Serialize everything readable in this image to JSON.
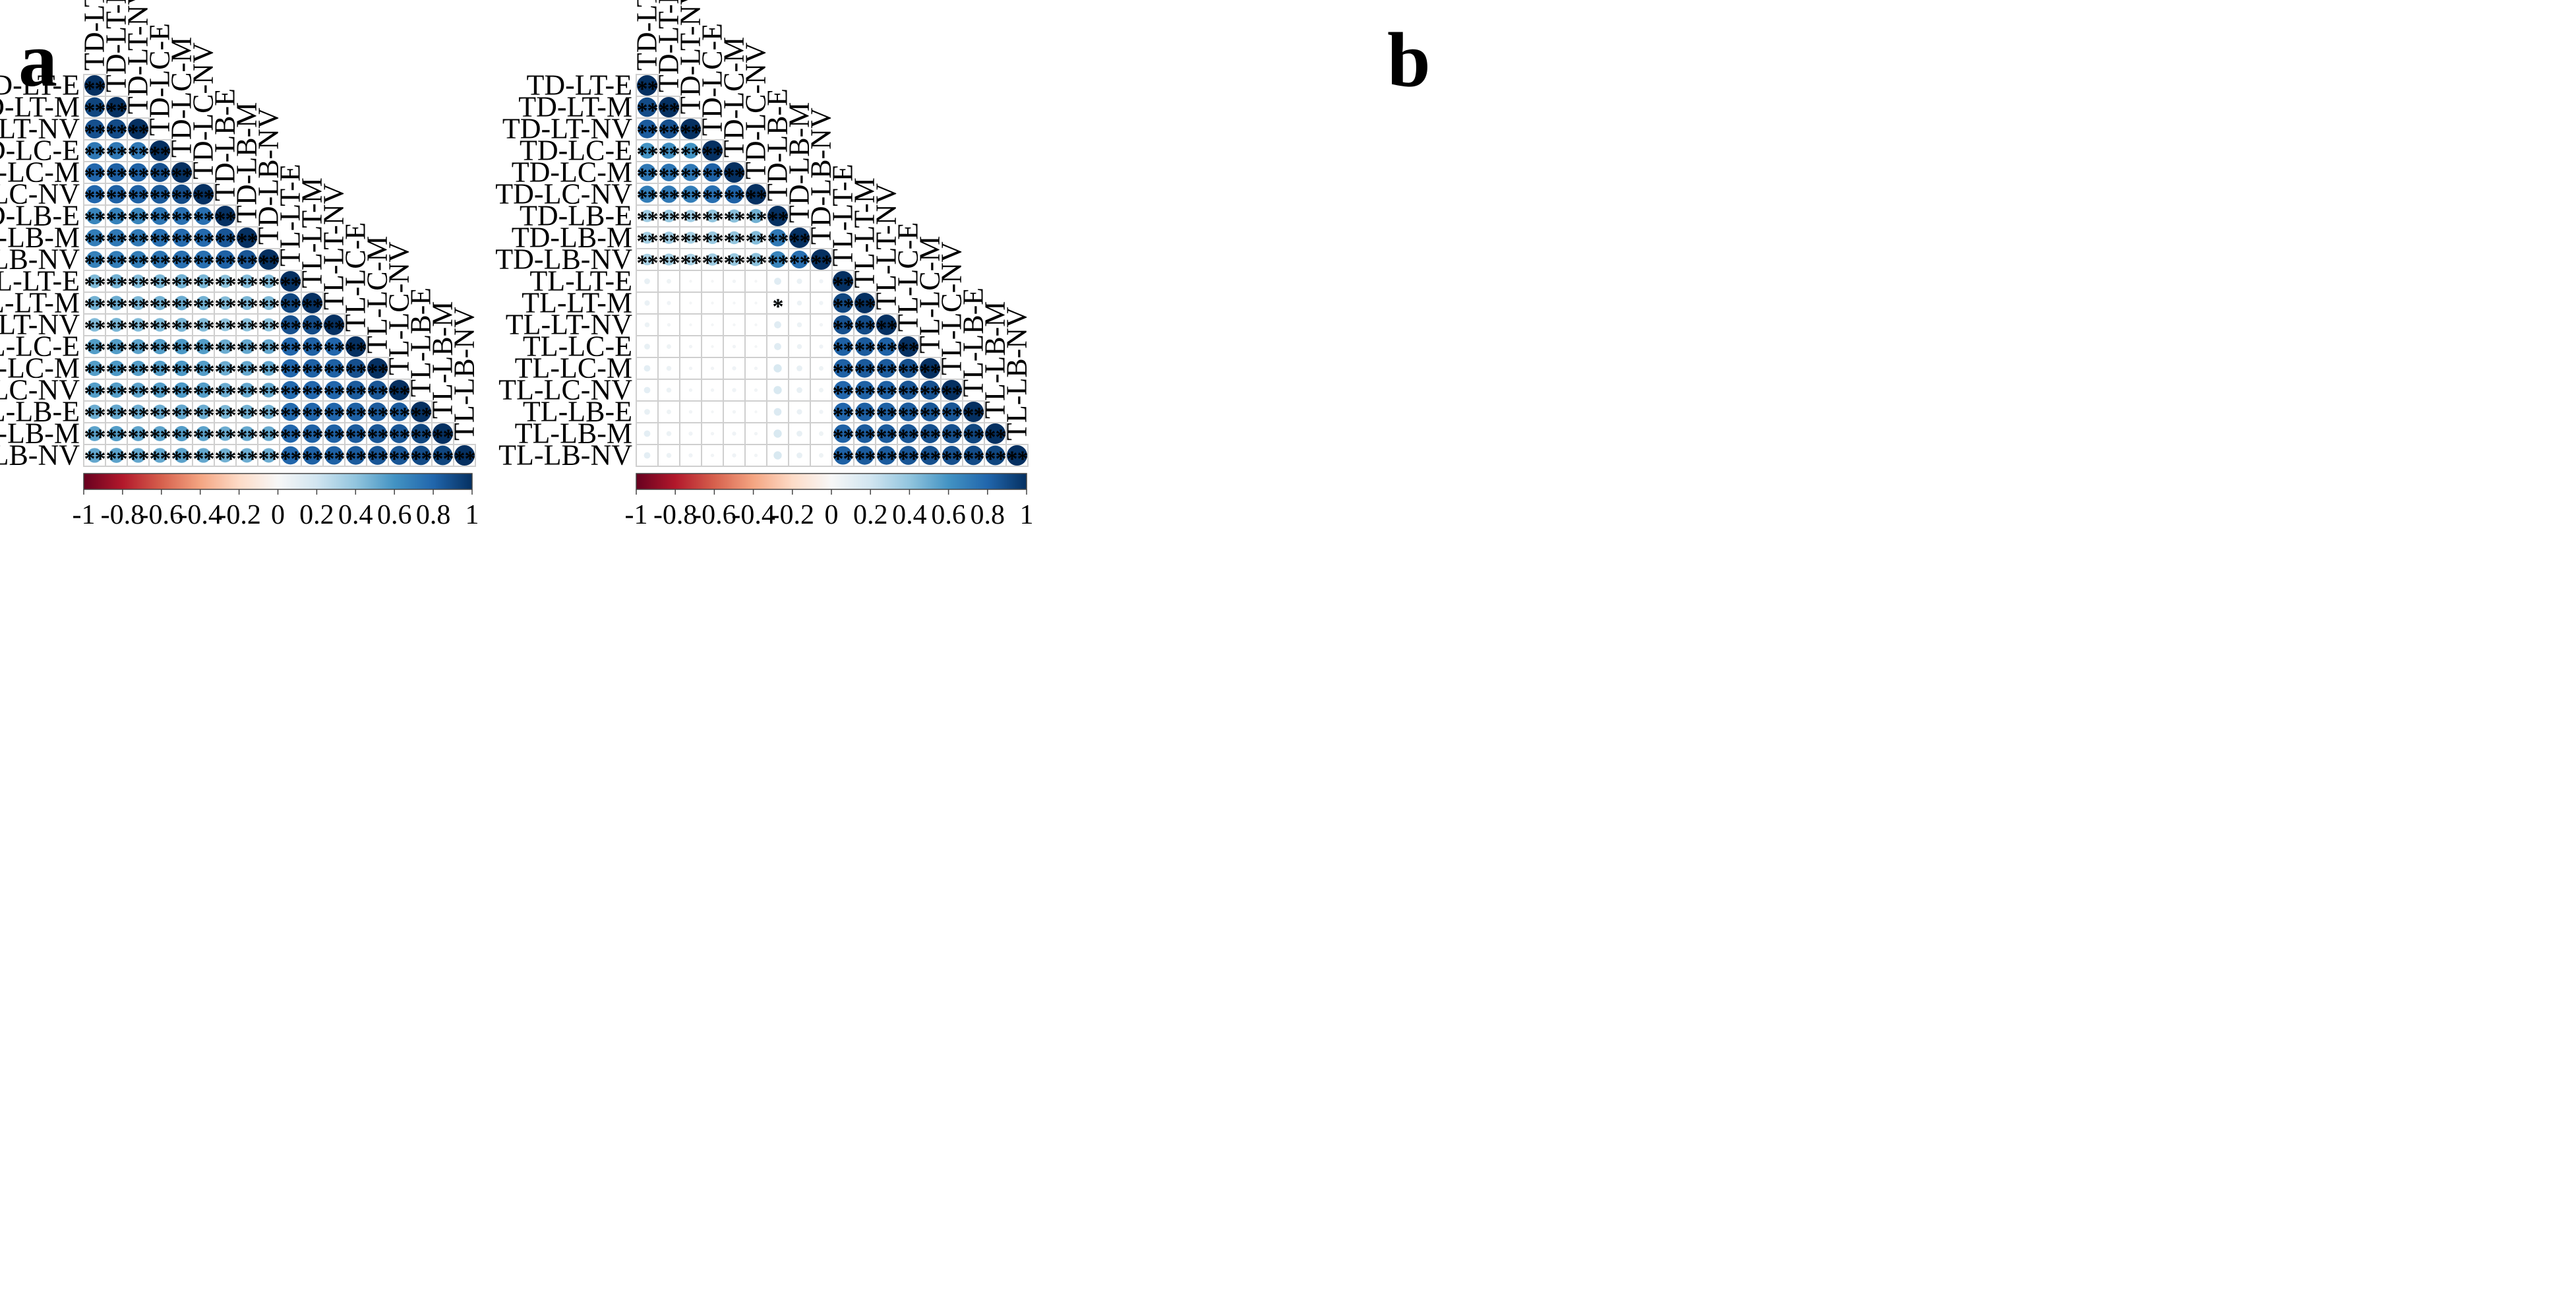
{
  "labels": [
    "TD-LT-E",
    "TD-LT-M",
    "TD-LT-NV",
    "TD-LC-E",
    "TD-LC-M",
    "TD-LC-NV",
    "TD-LB-E",
    "TD-LB-M",
    "TD-LB-NV",
    "TL-LT-E",
    "TL-LT-M",
    "TL-LT-NV",
    "TL-LC-E",
    "TL-LC-M",
    "TL-LC-NV",
    "TL-LB-E",
    "TL-LB-M",
    "TL-LB-NV"
  ],
  "colorbar": {
    "ticks": [
      "-1",
      "-0.8",
      "-0.6",
      "-0.4",
      "-0.2",
      "0",
      "0.2",
      "0.4",
      "0.6",
      "0.8",
      "1"
    ],
    "colors": [
      "#67001f",
      "#b2182b",
      "#d6604d",
      "#f4a582",
      "#fddbc7",
      "#f7f7f7",
      "#d1e5f0",
      "#92c5de",
      "#4393c3",
      "#2166ac",
      "#053061"
    ]
  },
  "chart_data": [
    {
      "panel": "a",
      "type": "heatmap",
      "title": "",
      "value_range": [
        -1,
        1
      ],
      "variables": [
        "TD-LT-E",
        "TD-LT-M",
        "TD-LT-NV",
        "TD-LC-E",
        "TD-LC-M",
        "TD-LC-NV",
        "TD-LB-E",
        "TD-LB-M",
        "TD-LB-NV",
        "TL-LT-E",
        "TL-LT-M",
        "TL-LT-NV",
        "TL-LC-E",
        "TL-LC-M",
        "TL-LC-NV",
        "TL-LB-E",
        "TL-LB-M",
        "TL-LB-NV"
      ],
      "matrix": [
        [
          1
        ],
        [
          0.92,
          1
        ],
        [
          0.88,
          0.9,
          1
        ],
        [
          0.72,
          0.72,
          0.72,
          1
        ],
        [
          0.8,
          0.82,
          0.82,
          0.88,
          1
        ],
        [
          0.8,
          0.82,
          0.82,
          0.85,
          0.9,
          1
        ],
        [
          0.66,
          0.68,
          0.66,
          0.74,
          0.76,
          0.76,
          1
        ],
        [
          0.7,
          0.72,
          0.72,
          0.76,
          0.78,
          0.78,
          0.86,
          1
        ],
        [
          0.68,
          0.7,
          0.7,
          0.74,
          0.76,
          0.76,
          0.82,
          0.86,
          1
        ],
        [
          0.45,
          0.48,
          0.44,
          0.46,
          0.48,
          0.46,
          0.42,
          0.44,
          0.44,
          1
        ],
        [
          0.48,
          0.5,
          0.46,
          0.48,
          0.5,
          0.48,
          0.44,
          0.46,
          0.46,
          0.92,
          1
        ],
        [
          0.44,
          0.46,
          0.44,
          0.44,
          0.46,
          0.44,
          0.4,
          0.42,
          0.42,
          0.88,
          0.9,
          1
        ],
        [
          0.56,
          0.56,
          0.54,
          0.56,
          0.58,
          0.56,
          0.5,
          0.52,
          0.52,
          0.8,
          0.82,
          0.8,
          1
        ],
        [
          0.56,
          0.58,
          0.56,
          0.56,
          0.58,
          0.56,
          0.5,
          0.52,
          0.52,
          0.8,
          0.82,
          0.82,
          0.88,
          1
        ],
        [
          0.56,
          0.56,
          0.54,
          0.56,
          0.58,
          0.56,
          0.5,
          0.52,
          0.52,
          0.78,
          0.8,
          0.8,
          0.84,
          0.86,
          1
        ],
        [
          0.5,
          0.52,
          0.5,
          0.5,
          0.52,
          0.5,
          0.46,
          0.48,
          0.48,
          0.78,
          0.8,
          0.8,
          0.82,
          0.84,
          0.84,
          1
        ],
        [
          0.54,
          0.56,
          0.54,
          0.54,
          0.56,
          0.54,
          0.5,
          0.52,
          0.52,
          0.8,
          0.82,
          0.82,
          0.84,
          0.86,
          0.86,
          0.92,
          1
        ],
        [
          0.52,
          0.54,
          0.52,
          0.52,
          0.54,
          0.52,
          0.48,
          0.5,
          0.5,
          0.8,
          0.82,
          0.82,
          0.84,
          0.86,
          0.86,
          0.9,
          0.92,
          1
        ]
      ],
      "significance": [
        [
          "**"
        ],
        [
          "**",
          "**"
        ],
        [
          "**",
          "**",
          "**"
        ],
        [
          "**",
          "**",
          "**",
          "**"
        ],
        [
          "**",
          "**",
          "**",
          "**",
          "**"
        ],
        [
          "**",
          "**",
          "**",
          "**",
          "**",
          "**"
        ],
        [
          "**",
          "**",
          "**",
          "**",
          "**",
          "**",
          "**"
        ],
        [
          "**",
          "**",
          "**",
          "**",
          "**",
          "**",
          "**",
          "**"
        ],
        [
          "**",
          "**",
          "**",
          "**",
          "**",
          "**",
          "**",
          "**",
          "**"
        ],
        [
          "**",
          "**",
          "**",
          "**",
          "**",
          "**",
          "**",
          "**",
          "**",
          "**"
        ],
        [
          "**",
          "**",
          "**",
          "**",
          "**",
          "**",
          "**",
          "**",
          "**",
          "**",
          "**"
        ],
        [
          "**",
          "**",
          "**",
          "**",
          "**",
          "**",
          "**",
          "**",
          "**",
          "**",
          "**",
          "**"
        ],
        [
          "**",
          "**",
          "**",
          "**",
          "**",
          "**",
          "**",
          "**",
          "**",
          "**",
          "**",
          "**",
          "**"
        ],
        [
          "**",
          "**",
          "**",
          "**",
          "**",
          "**",
          "**",
          "**",
          "**",
          "**",
          "**",
          "**",
          "**",
          "**"
        ],
        [
          "**",
          "**",
          "**",
          "**",
          "**",
          "**",
          "**",
          "**",
          "**",
          "**",
          "**",
          "**",
          "**",
          "**",
          "**"
        ],
        [
          "**",
          "**",
          "**",
          "**",
          "**",
          "**",
          "**",
          "**",
          "**",
          "**",
          "**",
          "**",
          "**",
          "**",
          "**",
          "**"
        ],
        [
          "**",
          "**",
          "**",
          "**",
          "**",
          "**",
          "**",
          "**",
          "**",
          "**",
          "**",
          "**",
          "**",
          "**",
          "**",
          "**",
          "**"
        ],
        [
          "**",
          "**",
          "**",
          "**",
          "**",
          "**",
          "**",
          "**",
          "**",
          "**",
          "**",
          "**",
          "**",
          "**",
          "**",
          "**",
          "**",
          "**"
        ]
      ]
    },
    {
      "panel": "b",
      "type": "heatmap",
      "title": "",
      "value_range": [
        -1,
        1
      ],
      "variables": [
        "TD-LT-E",
        "TD-LT-M",
        "TD-LT-NV",
        "TD-LC-E",
        "TD-LC-M",
        "TD-LC-NV",
        "TD-LB-E",
        "TD-LB-M",
        "TD-LB-NV",
        "TL-LT-E",
        "TL-LT-M",
        "TL-LT-NV",
        "TL-LC-E",
        "TL-LC-M",
        "TL-LC-NV",
        "TL-LB-E",
        "TL-LB-M",
        "TL-LB-NV"
      ],
      "matrix": [
        [
          1
        ],
        [
          0.9,
          1
        ],
        [
          0.84,
          0.88,
          1
        ],
        [
          0.6,
          0.62,
          0.6,
          1
        ],
        [
          0.72,
          0.74,
          0.72,
          0.82,
          1
        ],
        [
          0.7,
          0.72,
          0.7,
          0.76,
          0.82,
          1
        ],
        [
          0.36,
          0.38,
          0.36,
          0.4,
          0.42,
          0.48,
          1
        ],
        [
          0.34,
          0.36,
          0.34,
          0.38,
          0.4,
          0.44,
          0.72,
          1
        ],
        [
          0.32,
          0.34,
          0.32,
          0.36,
          0.38,
          0.42,
          0.66,
          0.76,
          1
        ],
        [
          0.08,
          0.05,
          0.02,
          0.02,
          0.03,
          0.02,
          0.12,
          0.07,
          0.04,
          1
        ],
        [
          0.07,
          0.04,
          0.02,
          0.02,
          0.02,
          0.02,
          0.13,
          0.06,
          0.04,
          0.92,
          1
        ],
        [
          0.06,
          0.03,
          0.02,
          0.02,
          0.02,
          0.02,
          0.12,
          0.06,
          0.03,
          0.88,
          0.9,
          1
        ],
        [
          0.08,
          0.05,
          0.03,
          0.02,
          0.03,
          0.02,
          0.12,
          0.06,
          0.04,
          0.82,
          0.84,
          0.82,
          1
        ],
        [
          0.1,
          0.06,
          0.03,
          0.03,
          0.04,
          0.03,
          0.16,
          0.08,
          0.05,
          0.82,
          0.84,
          0.84,
          0.88,
          1
        ],
        [
          0.1,
          0.06,
          0.03,
          0.03,
          0.04,
          0.03,
          0.16,
          0.08,
          0.05,
          0.8,
          0.82,
          0.82,
          0.86,
          0.88,
          1
        ],
        [
          0.08,
          0.05,
          0.03,
          0.02,
          0.03,
          0.02,
          0.14,
          0.07,
          0.04,
          0.8,
          0.82,
          0.82,
          0.84,
          0.86,
          0.86,
          1
        ],
        [
          0.1,
          0.06,
          0.04,
          0.03,
          0.04,
          0.03,
          0.16,
          0.08,
          0.05,
          0.82,
          0.84,
          0.84,
          0.86,
          0.88,
          0.88,
          0.92,
          1
        ],
        [
          0.1,
          0.06,
          0.04,
          0.03,
          0.04,
          0.03,
          0.16,
          0.08,
          0.05,
          0.82,
          0.84,
          0.84,
          0.86,
          0.88,
          0.88,
          0.9,
          0.92,
          1
        ]
      ],
      "significance": [
        [
          "**"
        ],
        [
          "**",
          "**"
        ],
        [
          "**",
          "**",
          "**"
        ],
        [
          "**",
          "**",
          "**",
          "**"
        ],
        [
          "**",
          "**",
          "**",
          "**",
          "**"
        ],
        [
          "**",
          "**",
          "**",
          "**",
          "**",
          "**"
        ],
        [
          "**",
          "**",
          "**",
          "**",
          "**",
          "**",
          "**"
        ],
        [
          "**",
          "**",
          "**",
          "**",
          "**",
          "**",
          "**",
          "**"
        ],
        [
          "**",
          "**",
          "**",
          "**",
          "**",
          "**",
          "**",
          "**",
          "**"
        ],
        [
          "",
          "",
          "",
          "",
          "",
          "",
          "",
          "",
          "",
          "**"
        ],
        [
          "",
          "",
          "",
          "",
          "",
          "",
          "*",
          "",
          "",
          "**",
          "**"
        ],
        [
          "",
          "",
          "",
          "",
          "",
          "",
          "",
          "",
          "",
          "**",
          "**",
          "**"
        ],
        [
          "",
          "",
          "",
          "",
          "",
          "",
          "",
          "",
          "",
          "**",
          "**",
          "**",
          "**"
        ],
        [
          "",
          "",
          "",
          "",
          "",
          "",
          "",
          "",
          "",
          "**",
          "**",
          "**",
          "**",
          "**"
        ],
        [
          "",
          "",
          "",
          "",
          "",
          "",
          "",
          "",
          "",
          "**",
          "**",
          "**",
          "**",
          "**",
          "**"
        ],
        [
          "",
          "",
          "",
          "",
          "",
          "",
          "",
          "",
          "",
          "**",
          "**",
          "**",
          "**",
          "**",
          "**",
          "**"
        ],
        [
          "",
          "",
          "",
          "",
          "",
          "",
          "",
          "",
          "",
          "**",
          "**",
          "**",
          "**",
          "**",
          "**",
          "**",
          "**"
        ],
        [
          "",
          "",
          "",
          "",
          "",
          "",
          "",
          "",
          "",
          "**",
          "**",
          "**",
          "**",
          "**",
          "**",
          "**",
          "**",
          "**"
        ]
      ]
    }
  ]
}
